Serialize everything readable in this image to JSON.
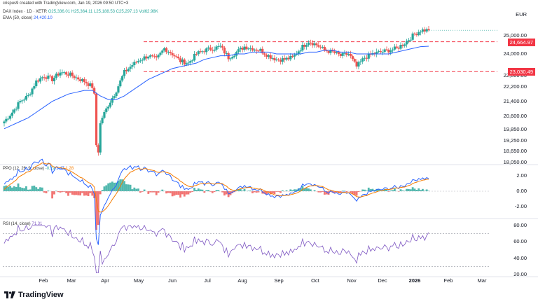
{
  "header": {
    "credit": "crispus9 created with TradingView.com, Jan 19, 2026 09:50 UTC+3",
    "symbol": "DAX Index · 1D · XETR",
    "ohlc": "O25,336.01 H25,364.11 L25,188.53 C25,297.13 Vol62.98K",
    "ema_label": "EMA (50, close)",
    "ema_value": "24,420.10",
    "currency": "EUR"
  },
  "panes": {
    "ppo_label": "PPO (12, 26, 9, close)",
    "ppo_vals": [
      "-0.19",
      "1.47",
      "1.28"
    ],
    "rsi_label": "RSI (14, close)",
    "rsi_val": "71.31"
  },
  "price_axis": [
    "25,000.00",
    "24,000.00",
    "22,800.00",
    "22,200.00",
    "21,400.00",
    "20,600.00",
    "19,850.00",
    "19,250.00",
    "18,650.00",
    "18,050.00"
  ],
  "ppo_axis": [
    "2.00",
    "0.00",
    "-2.00"
  ],
  "rsi_axis": [
    "80.00",
    "60.00",
    "40.00",
    "20.00"
  ],
  "price_tags": {
    "resistance": "24,664.97",
    "support": "23,030.49",
    "ema": "24,420.10"
  },
  "months": [
    "Feb",
    "Mar",
    "Apr",
    "May",
    "Jun",
    "Jul",
    "Aug",
    "Sep",
    "Oct",
    "Nov",
    "Dec",
    "2026",
    "Feb",
    "Mar"
  ],
  "logo_text": "TradingView",
  "colors": {
    "up": "#26a69a",
    "down": "#ef5350",
    "ema": "#2962ff",
    "level": "#f23645",
    "rsi": "#7e57c2",
    "ppo": "#2962ff",
    "signal": "#f57c00"
  },
  "chart_data": {
    "type": "line",
    "title": "DAX Index · 1D · XETR",
    "ylim": [
      18050,
      25650
    ],
    "hlines": [
      24664.97,
      23030.49
    ],
    "months": [
      "Feb",
      "Mar",
      "Apr",
      "May",
      "Jun",
      "Jul",
      "Aug",
      "Sep",
      "Oct",
      "Nov",
      "Dec",
      "2026",
      "Feb",
      "Mar"
    ],
    "series": [
      {
        "name": "DAX Index",
        "type": "candles",
        "x": [
          "2025-01-13",
          "2025-01-20",
          "2025-01-27",
          "2025-02-03",
          "2025-02-10",
          "2025-02-17",
          "2025-02-24",
          "2025-03-03",
          "2025-03-10",
          "2025-03-17",
          "2025-03-24",
          "2025-03-31",
          "2025-04-07",
          "2025-04-14",
          "2025-04-21",
          "2025-04-28",
          "2025-05-05",
          "2025-05-12",
          "2025-05-19",
          "2025-05-26",
          "2025-06-02",
          "2025-06-09",
          "2025-06-16",
          "2025-06-23",
          "2025-06-30",
          "2025-07-07",
          "2025-07-14",
          "2025-07-21",
          "2025-07-28",
          "2025-08-04",
          "2025-08-11",
          "2025-08-18",
          "2025-08-25",
          "2025-09-01",
          "2025-09-08",
          "2025-09-15",
          "2025-09-22",
          "2025-09-29",
          "2025-10-06",
          "2025-10-13",
          "2025-10-20",
          "2025-10-27",
          "2025-11-03",
          "2025-11-10",
          "2025-11-17",
          "2025-11-24",
          "2025-12-01",
          "2025-12-08",
          "2025-12-15",
          "2025-12-22",
          "2025-12-29",
          "2026-01-05",
          "2026-01-12",
          "2026-01-16"
        ],
        "close": [
          20300,
          20800,
          21400,
          21700,
          22500,
          22800,
          22600,
          23000,
          22900,
          22700,
          22500,
          22200,
          20300,
          21200,
          22000,
          23000,
          23400,
          23700,
          23900,
          23700,
          24300,
          24000,
          23600,
          23500,
          24000,
          24200,
          24300,
          24400,
          23800,
          24100,
          24400,
          24300,
          24200,
          23900,
          23700,
          23700,
          23800,
          24300,
          24700,
          24500,
          24200,
          24100,
          23900,
          24000,
          23300,
          23800,
          24000,
          24100,
          24200,
          24300,
          24600,
          25000,
          25300,
          25297.13
        ]
      },
      {
        "name": "EMA (50, close)",
        "type": "line",
        "values": [
          19900,
          20100,
          20300,
          20500,
          20800,
          21100,
          21400,
          21600,
          21800,
          21900,
          22000,
          22000,
          21700,
          21500,
          21500,
          21700,
          22000,
          22300,
          22600,
          22800,
          23000,
          23200,
          23300,
          23400,
          23500,
          23700,
          23800,
          23900,
          23900,
          24000,
          24000,
          24100,
          24100,
          24100,
          24000,
          24000,
          24000,
          24000,
          24100,
          24100,
          24200,
          24200,
          24100,
          24100,
          24000,
          24000,
          24000,
          24000,
          24000,
          24100,
          24200,
          24300,
          24400,
          24420.1
        ]
      }
    ],
    "ppo": {
      "ylim": [
        -3,
        3
      ],
      "labels": [
        "PPO (12, 26, 9, close)"
      ]
    },
    "rsi": {
      "ylim": [
        20,
        85
      ],
      "levels": [
        70,
        30
      ],
      "last": 71.31
    }
  }
}
